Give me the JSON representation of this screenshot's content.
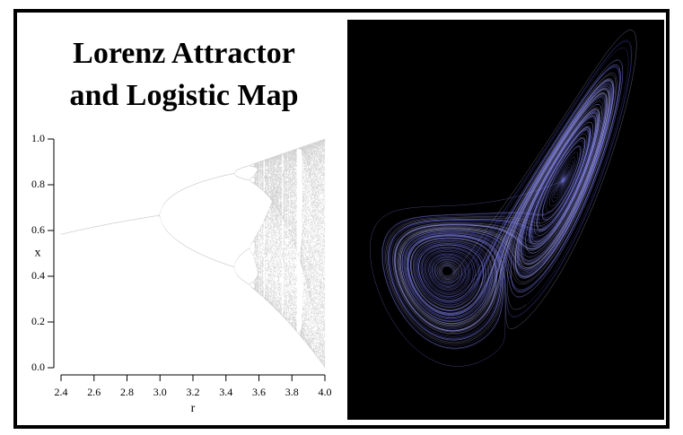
{
  "title_lines": [
    "Lorenz Attractor",
    "and Logistic Map"
  ],
  "chart_data": {
    "type": "bifurcation",
    "xlabel": "r",
    "ylabel": "x",
    "xlim": [
      2.4,
      4.0
    ],
    "ylim": [
      0,
      1
    ],
    "xticks": [
      2.4,
      2.6,
      2.8,
      {
        "value": 3,
        "label": "3.0"
      },
      3.2,
      3.4,
      3.6,
      3.8,
      {
        "value": 4,
        "label": "4.0"
      }
    ],
    "yticks": [
      {
        "value": 0,
        "label": "0.0"
      },
      0.2,
      0.4,
      0.6,
      0.8,
      {
        "value": 1,
        "label": "1.0"
      }
    ],
    "color": "#000000"
  }
}
